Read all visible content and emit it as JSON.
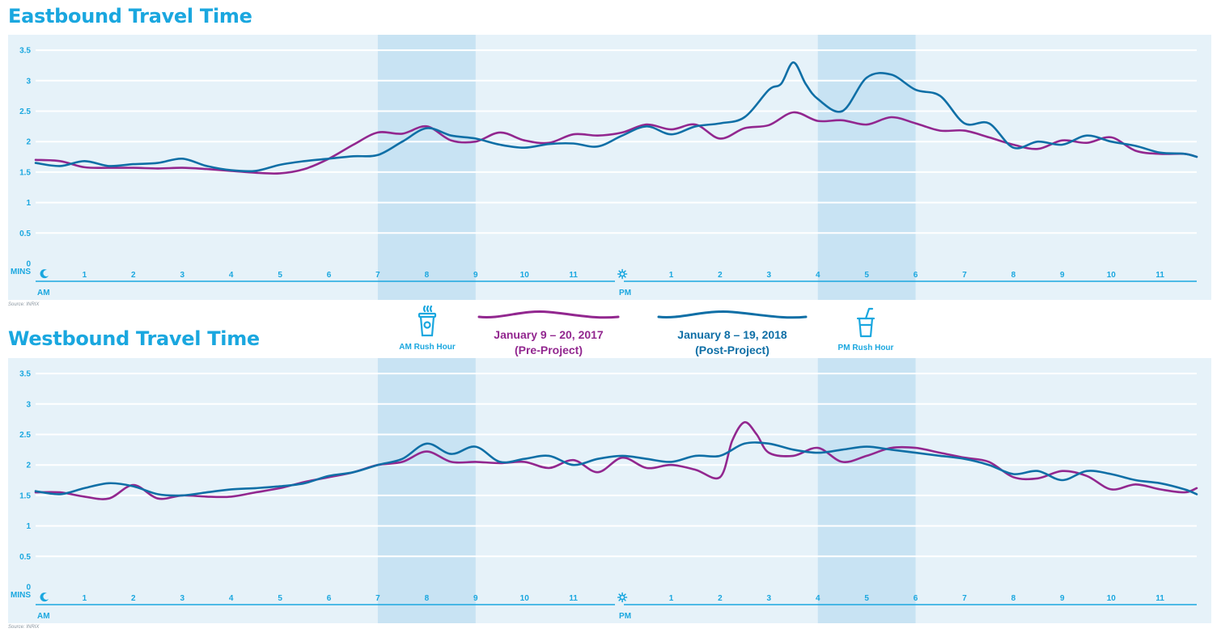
{
  "colors": {
    "panel_bg": "#e6f2f9",
    "rush_band": "#c8e3f3",
    "grid": "#ffffff",
    "accent": "#1aa7df",
    "pre": "#92278f",
    "post": "#0f6fa6"
  },
  "icons": {
    "am_rush": "coffee-cup-icon",
    "pm_rush": "soda-cup-icon",
    "midnight": "moon-icon",
    "noon": "sun-icon"
  },
  "legend": {
    "am_rush_label": "AM Rush Hour",
    "pm_rush_label": "PM Rush Hour",
    "pre": {
      "line1": "January 9 – 20, 2017",
      "line2": "(Pre-Project)"
    },
    "post": {
      "line1": "January 8 – 19, 2018",
      "line2": "(Post-Project)"
    }
  },
  "chart_data": [
    {
      "type": "line",
      "title": "Eastbound Travel Time",
      "source": "Source: INRIX",
      "ylabel": "MINS",
      "ylim": [
        0,
        3.5
      ],
      "yticks": [
        "0",
        "0.5",
        "1",
        "1.5",
        "2",
        "2.5",
        "3",
        "3.5"
      ],
      "xlim": [
        0,
        23.75
      ],
      "xticks": [
        "1",
        "2",
        "3",
        "4",
        "5",
        "6",
        "7",
        "8",
        "9",
        "10",
        "11",
        "1",
        "2",
        "3",
        "4",
        "5",
        "6",
        "7",
        "8",
        "9",
        "10",
        "11"
      ],
      "x_period_labels": {
        "am": "AM",
        "pm": "PM"
      },
      "rush_bands": [
        [
          7,
          9
        ],
        [
          16,
          18
        ]
      ],
      "grid": true,
      "series": [
        {
          "name": "January 9 – 20, 2017",
          "x": [
            0,
            0.5,
            1,
            1.5,
            2,
            2.5,
            3,
            3.5,
            4,
            4.5,
            5,
            5.5,
            6,
            6.5,
            7,
            7.5,
            8,
            8.5,
            9,
            9.5,
            10,
            10.5,
            11,
            11.5,
            12,
            12.5,
            13,
            13.5,
            14,
            14.5,
            15,
            15.5,
            16,
            16.5,
            17,
            17.5,
            18,
            18.5,
            19,
            19.5,
            20,
            20.5,
            21,
            21.5,
            22,
            22.5,
            23,
            23.5,
            23.75
          ],
          "y": [
            1.7,
            1.68,
            1.58,
            1.57,
            1.57,
            1.56,
            1.57,
            1.55,
            1.52,
            1.49,
            1.48,
            1.55,
            1.72,
            1.95,
            2.15,
            2.13,
            2.25,
            2.02,
            2.0,
            2.15,
            2.02,
            1.98,
            2.12,
            2.1,
            2.15,
            2.28,
            2.2,
            2.28,
            2.05,
            2.22,
            2.27,
            2.48,
            2.34,
            2.35,
            2.28,
            2.4,
            2.3,
            2.18,
            2.18,
            2.07,
            1.95,
            1.88,
            2.02,
            1.98,
            2.07,
            1.85,
            1.8,
            1.8,
            1.75
          ]
        },
        {
          "name": "January 8 – 19, 2018",
          "x": [
            0,
            0.5,
            1,
            1.5,
            2,
            2.5,
            3,
            3.5,
            4,
            4.5,
            5,
            5.5,
            6,
            6.5,
            7,
            7.5,
            8,
            8.5,
            9,
            9.5,
            10,
            10.5,
            11,
            11.5,
            12,
            12.5,
            13,
            13.5,
            14,
            14.5,
            15,
            15.25,
            15.5,
            15.75,
            16,
            16.5,
            17,
            17.5,
            18,
            18.5,
            19,
            19.5,
            20,
            20.5,
            21,
            21.5,
            22,
            22.5,
            23,
            23.5,
            23.75
          ],
          "y": [
            1.65,
            1.6,
            1.68,
            1.6,
            1.63,
            1.65,
            1.72,
            1.6,
            1.53,
            1.52,
            1.62,
            1.68,
            1.72,
            1.76,
            1.78,
            2.0,
            2.22,
            2.1,
            2.05,
            1.95,
            1.9,
            1.96,
            1.97,
            1.92,
            2.1,
            2.25,
            2.12,
            2.25,
            2.3,
            2.4,
            2.85,
            2.95,
            3.3,
            2.95,
            2.7,
            2.5,
            3.05,
            3.1,
            2.85,
            2.75,
            2.3,
            2.3,
            1.9,
            2.0,
            1.95,
            2.1,
            2.0,
            1.93,
            1.82,
            1.8,
            1.75
          ]
        }
      ]
    },
    {
      "type": "line",
      "title": "Westbound Travel Time",
      "source": "Source: INRIX",
      "ylabel": "MINS",
      "ylim": [
        0,
        3.5
      ],
      "yticks": [
        "0",
        "0.5",
        "1",
        "1.5",
        "2",
        "2.5",
        "3",
        "3.5"
      ],
      "xlim": [
        0,
        23.75
      ],
      "xticks": [
        "1",
        "2",
        "3",
        "4",
        "5",
        "6",
        "7",
        "8",
        "9",
        "10",
        "11",
        "1",
        "2",
        "3",
        "4",
        "5",
        "6",
        "7",
        "8",
        "9",
        "10",
        "11"
      ],
      "x_period_labels": {
        "am": "AM",
        "pm": "PM"
      },
      "rush_bands": [
        [
          7,
          9
        ],
        [
          16,
          18
        ]
      ],
      "grid": true,
      "series": [
        {
          "name": "January 9 – 20, 2017",
          "x": [
            0,
            0.5,
            1,
            1.5,
            2,
            2.5,
            3,
            3.5,
            4,
            4.5,
            5,
            5.5,
            6,
            6.5,
            7,
            7.5,
            8,
            8.5,
            9,
            9.5,
            10,
            10.5,
            11,
            11.5,
            12,
            12.5,
            13,
            13.5,
            14,
            14.25,
            14.5,
            14.75,
            15,
            15.5,
            16,
            16.5,
            17,
            17.5,
            18,
            18.5,
            19,
            19.5,
            20,
            20.5,
            21,
            21.5,
            22,
            22.5,
            23,
            23.5,
            23.75
          ],
          "y": [
            1.55,
            1.55,
            1.48,
            1.45,
            1.67,
            1.45,
            1.5,
            1.48,
            1.48,
            1.55,
            1.62,
            1.72,
            1.8,
            1.88,
            2.0,
            2.05,
            2.22,
            2.05,
            2.05,
            2.03,
            2.05,
            1.95,
            2.08,
            1.88,
            2.12,
            1.95,
            2.0,
            1.92,
            1.8,
            2.4,
            2.7,
            2.5,
            2.2,
            2.15,
            2.28,
            2.05,
            2.15,
            2.28,
            2.28,
            2.2,
            2.12,
            2.05,
            1.8,
            1.78,
            1.9,
            1.82,
            1.6,
            1.68,
            1.6,
            1.55,
            1.62
          ]
        },
        {
          "name": "January 8 – 19, 2018",
          "x": [
            0,
            0.5,
            1,
            1.5,
            2,
            2.5,
            3,
            3.5,
            4,
            4.5,
            5,
            5.5,
            6,
            6.5,
            7,
            7.5,
            8,
            8.5,
            9,
            9.5,
            10,
            10.5,
            11,
            11.5,
            12,
            12.5,
            13,
            13.5,
            14,
            14.5,
            15,
            15.5,
            16,
            16.5,
            17,
            17.5,
            18,
            18.5,
            19,
            19.5,
            20,
            20.5,
            21,
            21.5,
            22,
            22.5,
            23,
            23.5,
            23.75
          ],
          "y": [
            1.57,
            1.52,
            1.62,
            1.7,
            1.65,
            1.52,
            1.5,
            1.55,
            1.6,
            1.62,
            1.65,
            1.7,
            1.82,
            1.88,
            2.0,
            2.1,
            2.35,
            2.18,
            2.3,
            2.05,
            2.1,
            2.15,
            2.0,
            2.1,
            2.15,
            2.1,
            2.05,
            2.15,
            2.15,
            2.35,
            2.35,
            2.25,
            2.2,
            2.25,
            2.3,
            2.25,
            2.2,
            2.15,
            2.1,
            2.0,
            1.85,
            1.9,
            1.75,
            1.9,
            1.85,
            1.75,
            1.7,
            1.6,
            1.52
          ]
        }
      ]
    }
  ]
}
